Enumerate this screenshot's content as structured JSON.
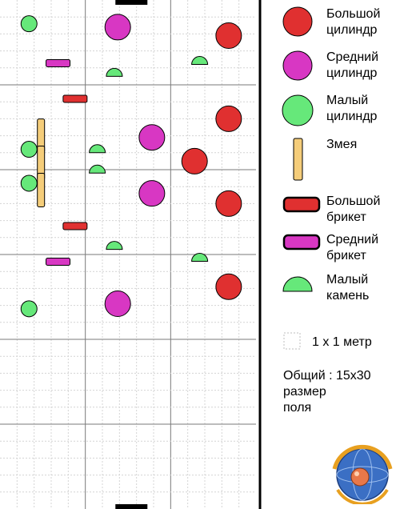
{
  "colors": {
    "large_cylinder": "#e03030",
    "medium_cylinder": "#d837c3",
    "small_cylinder": "#66e87a",
    "snake": "#f5cd7a",
    "large_brick": "#e03030",
    "medium_brick": "#d837c3",
    "small_stone": "#66e87a",
    "grid_minor": "#d4d4d4",
    "grid_major": "#7a7a7a",
    "field_border": "#000000"
  },
  "legend": {
    "large_cylinder": "Большой\nцилиндр",
    "medium_cylinder": "Средний\nцилиндр",
    "small_cylinder": "Малый\nцилиндр",
    "snake": "Змея",
    "large_brick": "Большой\nбрикет",
    "medium_brick": "Средний\nбрикет",
    "small_stone": "Малый\nкамень",
    "scale": "1 х 1 метр",
    "field_size_label": "Общий :  15х30\nразмер\nполя"
  },
  "field": {
    "cols": 15,
    "rows": 30,
    "objects": [
      {
        "type": "large_cylinder",
        "x": 13.4,
        "y": 2.1
      },
      {
        "type": "large_cylinder",
        "x": 13.4,
        "y": 7.0
      },
      {
        "type": "large_cylinder",
        "x": 11.4,
        "y": 9.5
      },
      {
        "type": "large_cylinder",
        "x": 13.4,
        "y": 12.0
      },
      {
        "type": "large_cylinder",
        "x": 13.4,
        "y": 16.9
      },
      {
        "type": "medium_cylinder",
        "x": 6.9,
        "y": 1.6
      },
      {
        "type": "medium_cylinder",
        "x": 8.9,
        "y": 8.1
      },
      {
        "type": "medium_cylinder",
        "x": 8.9,
        "y": 11.4
      },
      {
        "type": "medium_cylinder",
        "x": 6.9,
        "y": 17.9
      },
      {
        "type": "small_cylinder",
        "x": 1.7,
        "y": 1.4
      },
      {
        "type": "small_cylinder",
        "x": 1.7,
        "y": 8.8
      },
      {
        "type": "small_cylinder",
        "x": 1.7,
        "y": 10.8
      },
      {
        "type": "small_cylinder",
        "x": 1.7,
        "y": 18.2
      },
      {
        "type": "small_stone",
        "x": 11.7,
        "y": 3.8
      },
      {
        "type": "small_stone",
        "x": 6.7,
        "y": 4.5
      },
      {
        "type": "small_stone",
        "x": 5.7,
        "y": 9.0
      },
      {
        "type": "small_stone",
        "x": 5.7,
        "y": 10.2
      },
      {
        "type": "small_stone",
        "x": 6.7,
        "y": 14.7
      },
      {
        "type": "small_stone",
        "x": 11.7,
        "y": 15.4
      },
      {
        "type": "medium_brick",
        "x": 3.4,
        "y": 3.7
      },
      {
        "type": "medium_brick",
        "x": 3.4,
        "y": 15.4
      },
      {
        "type": "large_brick",
        "x": 4.4,
        "y": 5.8
      },
      {
        "type": "large_brick",
        "x": 4.4,
        "y": 13.3
      },
      {
        "type": "snake",
        "x": 2.4,
        "y": 8.0
      },
      {
        "type": "snake",
        "x": 2.4,
        "y": 9.6
      },
      {
        "type": "snake",
        "x": 2.4,
        "y": 11.2
      },
      {
        "type": "gate",
        "x": 7.7,
        "y": 0.0
      },
      {
        "type": "gate",
        "x": 7.7,
        "y": 30.0
      }
    ]
  }
}
